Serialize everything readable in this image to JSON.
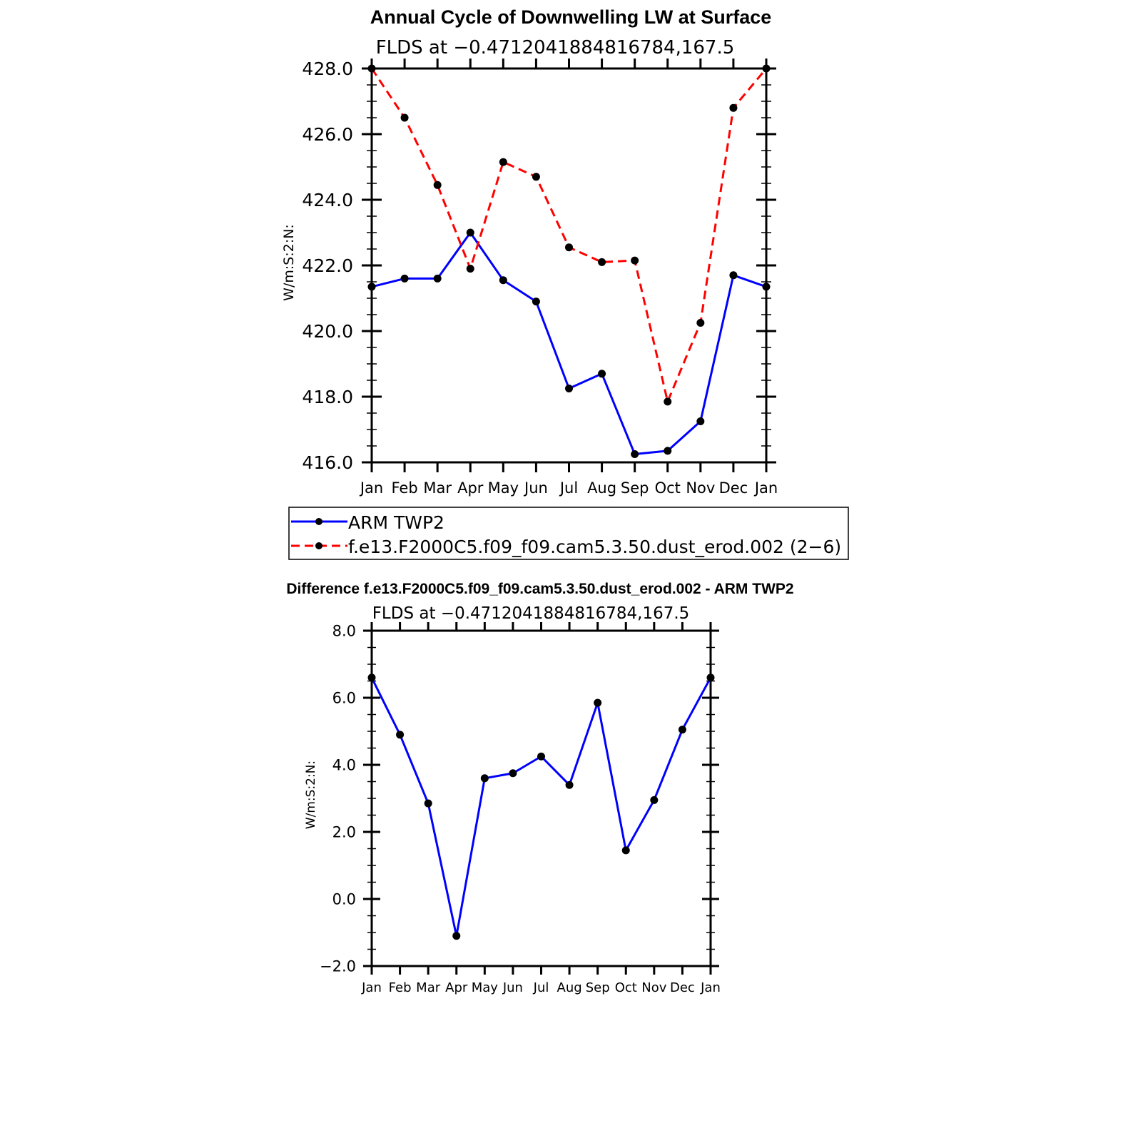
{
  "chart_data": [
    {
      "type": "line",
      "title": "Annual Cycle of Downwelling LW at Surface",
      "subtitle": "FLDS at −0.4712041884816784,167.5",
      "xlabel": "",
      "ylabel": "W/m:S:2:N:",
      "categories": [
        "Jan",
        "Feb",
        "Mar",
        "Apr",
        "May",
        "Jun",
        "Jul",
        "Aug",
        "Sep",
        "Oct",
        "Nov",
        "Dec",
        "Jan"
      ],
      "ylim": [
        416.0,
        428.0
      ],
      "ytick_labels": [
        "416.0",
        "418.0",
        "420.0",
        "422.0",
        "424.0",
        "426.0",
        "428.0"
      ],
      "series": [
        {
          "name": "ARM TWP2",
          "color": "#0000ff",
          "dash": "solid",
          "values": [
            421.35,
            421.6,
            421.6,
            423.0,
            421.55,
            420.9,
            418.25,
            418.7,
            416.25,
            416.35,
            417.25,
            421.7,
            421.35
          ]
        },
        {
          "name": "f.e13.F2000C5.f09_f09.cam5.3.50.dust_erod.002 (2−6)",
          "color": "#ff0000",
          "dash": "dashed",
          "values": [
            428.0,
            426.5,
            424.45,
            421.9,
            425.15,
            424.7,
            422.55,
            422.1,
            422.15,
            417.85,
            420.25,
            426.8,
            428.0
          ]
        }
      ],
      "marker_color": "#000000",
      "legend": "below"
    },
    {
      "type": "line",
      "title": "Difference f.e13.F2000C5.f09_f09.cam5.3.50.dust_erod.002 - ARM TWP2",
      "subtitle": "FLDS at −0.4712041884816784,167.5",
      "xlabel": "",
      "ylabel": "W/m:S:2:N:",
      "categories": [
        "Jan",
        "Feb",
        "Mar",
        "Apr",
        "May",
        "Jun",
        "Jul",
        "Aug",
        "Sep",
        "Oct",
        "Nov",
        "Dec",
        "Jan"
      ],
      "ylim": [
        -2.0,
        8.0
      ],
      "ytick_labels": [
        "−2.0",
        "0.0",
        "2.0",
        "4.0",
        "6.0",
        "8.0"
      ],
      "series": [
        {
          "name": "Difference",
          "color": "#0000ff",
          "dash": "solid",
          "values": [
            6.6,
            4.9,
            2.85,
            -1.1,
            3.6,
            3.75,
            4.25,
            3.4,
            5.85,
            1.45,
            2.95,
            5.05,
            6.6
          ]
        }
      ],
      "marker_color": "#000000"
    }
  ]
}
